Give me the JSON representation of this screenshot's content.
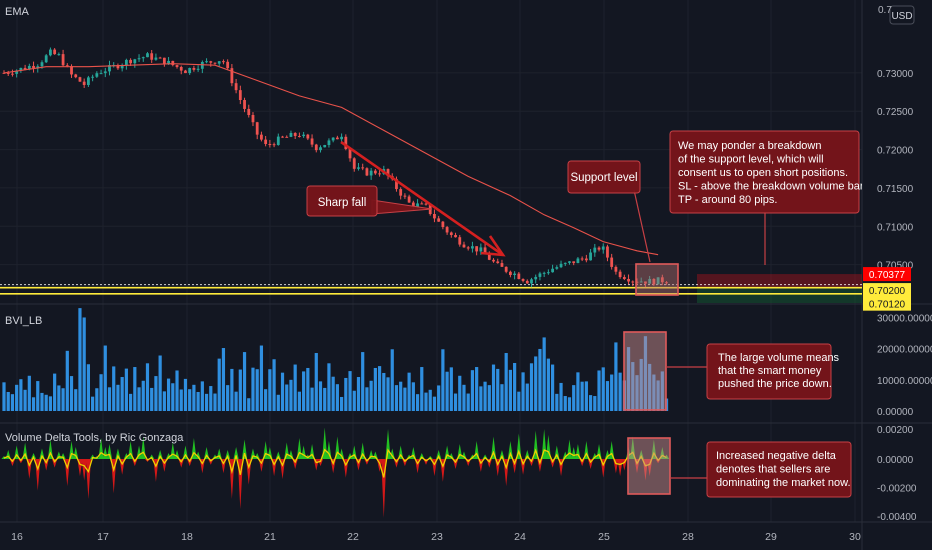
{
  "chart_data": [
    {
      "type": "candlestick",
      "pane": "price",
      "title": "EMA",
      "currency_badge": "USD",
      "y_ticks": [
        "0.73000",
        "0.72500",
        "0.72000",
        "0.71500",
        "0.71000",
        "0.70500"
      ],
      "ylim": [
        0.7,
        0.7395
      ],
      "x_ticks": [
        "16",
        "17",
        "18",
        "21",
        "22",
        "23",
        "24",
        "25",
        "28",
        "29",
        "30"
      ],
      "price_path": [
        [
          0,
          0.73
        ],
        [
          4,
          0.7305
        ],
        [
          8,
          0.7312
        ],
        [
          11,
          0.7326
        ],
        [
          13,
          0.7322
        ],
        [
          16,
          0.7297
        ],
        [
          19,
          0.7285
        ],
        [
          22,
          0.73
        ],
        [
          26,
          0.7308
        ],
        [
          30,
          0.7317
        ],
        [
          34,
          0.7322
        ],
        [
          38,
          0.7315
        ],
        [
          43,
          0.7303
        ],
        [
          47,
          0.7312
        ],
        [
          51,
          0.7317
        ],
        [
          52,
          0.7315
        ],
        [
          56,
          0.7265
        ],
        [
          60,
          0.722
        ],
        [
          62,
          0.7205
        ],
        [
          66,
          0.7215
        ],
        [
          70,
          0.722
        ],
        [
          74,
          0.7203
        ],
        [
          78,
          0.7212
        ],
        [
          80,
          0.722
        ],
        [
          83,
          0.7175
        ],
        [
          86,
          0.717
        ],
        [
          90,
          0.7172
        ],
        [
          93,
          0.715
        ],
        [
          96,
          0.713
        ],
        [
          100,
          0.7125
        ],
        [
          103,
          0.7105
        ],
        [
          106,
          0.7088
        ],
        [
          109,
          0.7077
        ],
        [
          113,
          0.7068
        ],
        [
          117,
          0.7048
        ],
        [
          121,
          0.7038
        ],
        [
          124,
          0.7029
        ],
        [
          127,
          0.7037
        ],
        [
          130,
          0.7045
        ],
        [
          134,
          0.7052
        ],
        [
          138,
          0.706
        ],
        [
          141,
          0.7072
        ],
        [
          142,
          0.707
        ],
        [
          145,
          0.704
        ],
        [
          149,
          0.703
        ],
        [
          153,
          0.7028
        ],
        [
          157,
          0.703
        ]
      ],
      "ema_path": [
        [
          0,
          0.73
        ],
        [
          10,
          0.7308
        ],
        [
          20,
          0.7308
        ],
        [
          30,
          0.731
        ],
        [
          40,
          0.7312
        ],
        [
          50,
          0.731
        ],
        [
          60,
          0.729
        ],
        [
          70,
          0.727
        ],
        [
          80,
          0.7255
        ],
        [
          90,
          0.7225
        ],
        [
          100,
          0.7195
        ],
        [
          110,
          0.7165
        ],
        [
          120,
          0.714
        ],
        [
          128,
          0.7115
        ],
        [
          135,
          0.7098
        ],
        [
          142,
          0.708
        ],
        [
          150,
          0.7068
        ],
        [
          155,
          0.7063
        ]
      ],
      "series": [
        {
          "name": "Support level",
          "values": [
            0.702,
            0.7012
          ],
          "color": "#ffeb3b"
        }
      ],
      "price_labels": [
        {
          "text": "0.70377",
          "value": 0.70377,
          "color": "#ff0000"
        },
        {
          "text": "0.70200",
          "value": 0.702,
          "color": "#ffeb3b"
        },
        {
          "text": "0.70120",
          "value": 0.7012,
          "color": "#ffeb3b"
        }
      ],
      "projection_zone": {
        "top": 0.70377,
        "entry": 0.702,
        "target": 0.7012
      },
      "annotations": {
        "sharp_fall": "Sharp fall",
        "support": "Support level",
        "breakdown": [
          "We may ponder a breakdown",
          "of the support level, which will",
          "consent us to open short positions.",
          "SL - above the breakdown volume bar.",
          "TP - around 80 pips."
        ]
      }
    },
    {
      "type": "bar",
      "pane": "volume",
      "title": "BVI_LB",
      "y_ticks": [
        "30000.00000",
        "20000.00000",
        "10000.00000",
        "0.00000"
      ],
      "ylim": [
        0,
        34000
      ],
      "values": [
        9200,
        6100,
        5400,
        8400,
        10200,
        6800,
        11300,
        4400,
        9600,
        5800,
        5200,
        4700,
        12000,
        8200,
        7300,
        19300,
        11200,
        7000,
        33000,
        30000,
        15000,
        4600,
        7300,
        11800,
        21000,
        7600,
        14300,
        8400,
        10900,
        13600,
        5500,
        14100,
        7600,
        9700,
        15300,
        7400,
        11200,
        17800,
        6300,
        10400,
        8900,
        13000,
        6900,
        10300,
        7000,
        8400,
        6100,
        9500,
        5500,
        8000,
        5600,
        16800,
        20200,
        8300,
        13500,
        6200,
        13300,
        18900,
        4100,
        13900,
        13400,
        21000,
        7000,
        13400,
        16600,
        5200,
        12300,
        8500,
        10000,
        14900,
        6200,
        12700,
        13800,
        7500,
        18600,
        9500,
        7400,
        15300,
        11000,
        8600,
        4500,
        10600,
        12800,
        6500,
        10900,
        18900,
        7600,
        9700,
        13800,
        14400,
        12200,
        10800,
        19800,
        8300,
        9400,
        7500,
        12300,
        9200,
        5400,
        14100,
        5900,
        6800,
        4600,
        8200,
        19800,
        12600,
        14000,
        5600,
        11300,
        8400,
        5600,
        13100,
        14100,
        7900,
        9400,
        8300,
        14900,
        13500,
        8600,
        18600,
        13200,
        15400,
        6200,
        12400,
        8800,
        15300,
        17500,
        19900,
        23600,
        16800,
        14900,
        5500,
        9000,
        4800,
        4400,
        8300,
        12400,
        9400,
        9500,
        5100,
        4800,
        13000,
        14000,
        9600,
        11700,
        22000,
        12300,
        9800,
        20500,
        15700,
        11500,
        16700,
        24000,
        15100,
        11700,
        9800,
        12700,
        4000
      ],
      "annotation": [
        "The large volume means",
        "that the smart money",
        "pushed the price down."
      ]
    },
    {
      "type": "area",
      "pane": "delta",
      "title": "Volume Delta Tools, by Ric Gonzaga",
      "y_ticks": [
        "0.00200",
        "0.00000",
        "-0.00200",
        "-0.00400"
      ],
      "ylim": [
        -0.0042,
        0.0023
      ],
      "values": [
        0.0002,
        0.0006,
        -0.0005,
        0.0009,
        -0.0003,
        0.0011,
        -0.0014,
        0.0004,
        -0.0022,
        0.0007,
        -0.0008,
        0.0013,
        -0.0006,
        0.0005,
        0.0004,
        -0.0019,
        0.0012,
        0.0008,
        -0.0012,
        -0.0015,
        -0.0028,
        0.0003,
        0.0002,
        0.0014,
        0.0008,
        0.001,
        -0.0024,
        0.0007,
        -0.0011,
        0.0004,
        0.0012,
        -0.0005,
        0.0009,
        0.0015,
        -0.0002,
        0.0003,
        -0.0016,
        0.0006,
        -0.0009,
        0.0004,
        0.0011,
        0.0006,
        -0.0006,
        0.0009,
        -0.0005,
        0.0014,
        0.0005,
        -0.001,
        0.0008,
        -0.0004,
        0.0003,
        0.0007,
        -0.001,
        0.0006,
        -0.0028,
        0.0008,
        -0.0035,
        0.0013,
        -0.0018,
        0.0007,
        0.0004,
        -0.0009,
        0.0012,
        0.0008,
        -0.0012,
        0.0005,
        -0.0014,
        0.0011,
        0.0006,
        -0.0007,
        0.0014,
        0.0009,
        0.0003,
        0.001,
        -0.0008,
        -0.0005,
        0.0021,
        0.0012,
        -0.001,
        0.0015,
        0.0007,
        -0.0013,
        0.0004,
        0.0009,
        -0.0008,
        0.0011,
        -0.0004,
        0.0006,
        0.0005,
        -0.0009,
        -0.0041,
        0.002,
        0.0007,
        -0.0006,
        0.0009,
        -0.0005,
        0.0003,
        0.0008,
        -0.001,
        0.0004,
        -0.0004,
        0.0002,
        -0.0012,
        0.0006,
        -0.0016,
        0.0009,
        0.0004,
        -0.0007,
        0.001,
        0.0005,
        -0.0005,
        0.0003,
        0.0012,
        -0.0009,
        0.0003,
        -0.0006,
        0.0015,
        -0.0012,
        0.0006,
        -0.0019,
        0.0012,
        -0.001,
        0.0017,
        -0.0011,
        0.0006,
        -0.0005,
        0.0019,
        -0.0009,
        0.002,
        0.0016,
        -0.0006,
        0.0009,
        -0.0012,
        0.0005,
        0.0013,
        0.0008,
        0.001,
        -0.0005,
        0.0012,
        -0.0007,
        0.0004,
        0.001,
        -0.0013,
        0.0006,
        0.0012,
        -0.001,
        -0.0012,
        -0.0008,
        0.0008,
        0.0015,
        -0.001,
        0.0006,
        -0.0015,
        -0.0012,
        0.0013,
        -0.0003,
        0.0008,
        0.0003
      ],
      "annotation": [
        "Increased negative delta",
        "denotes that sellers are",
        "dominating the market now."
      ]
    }
  ]
}
